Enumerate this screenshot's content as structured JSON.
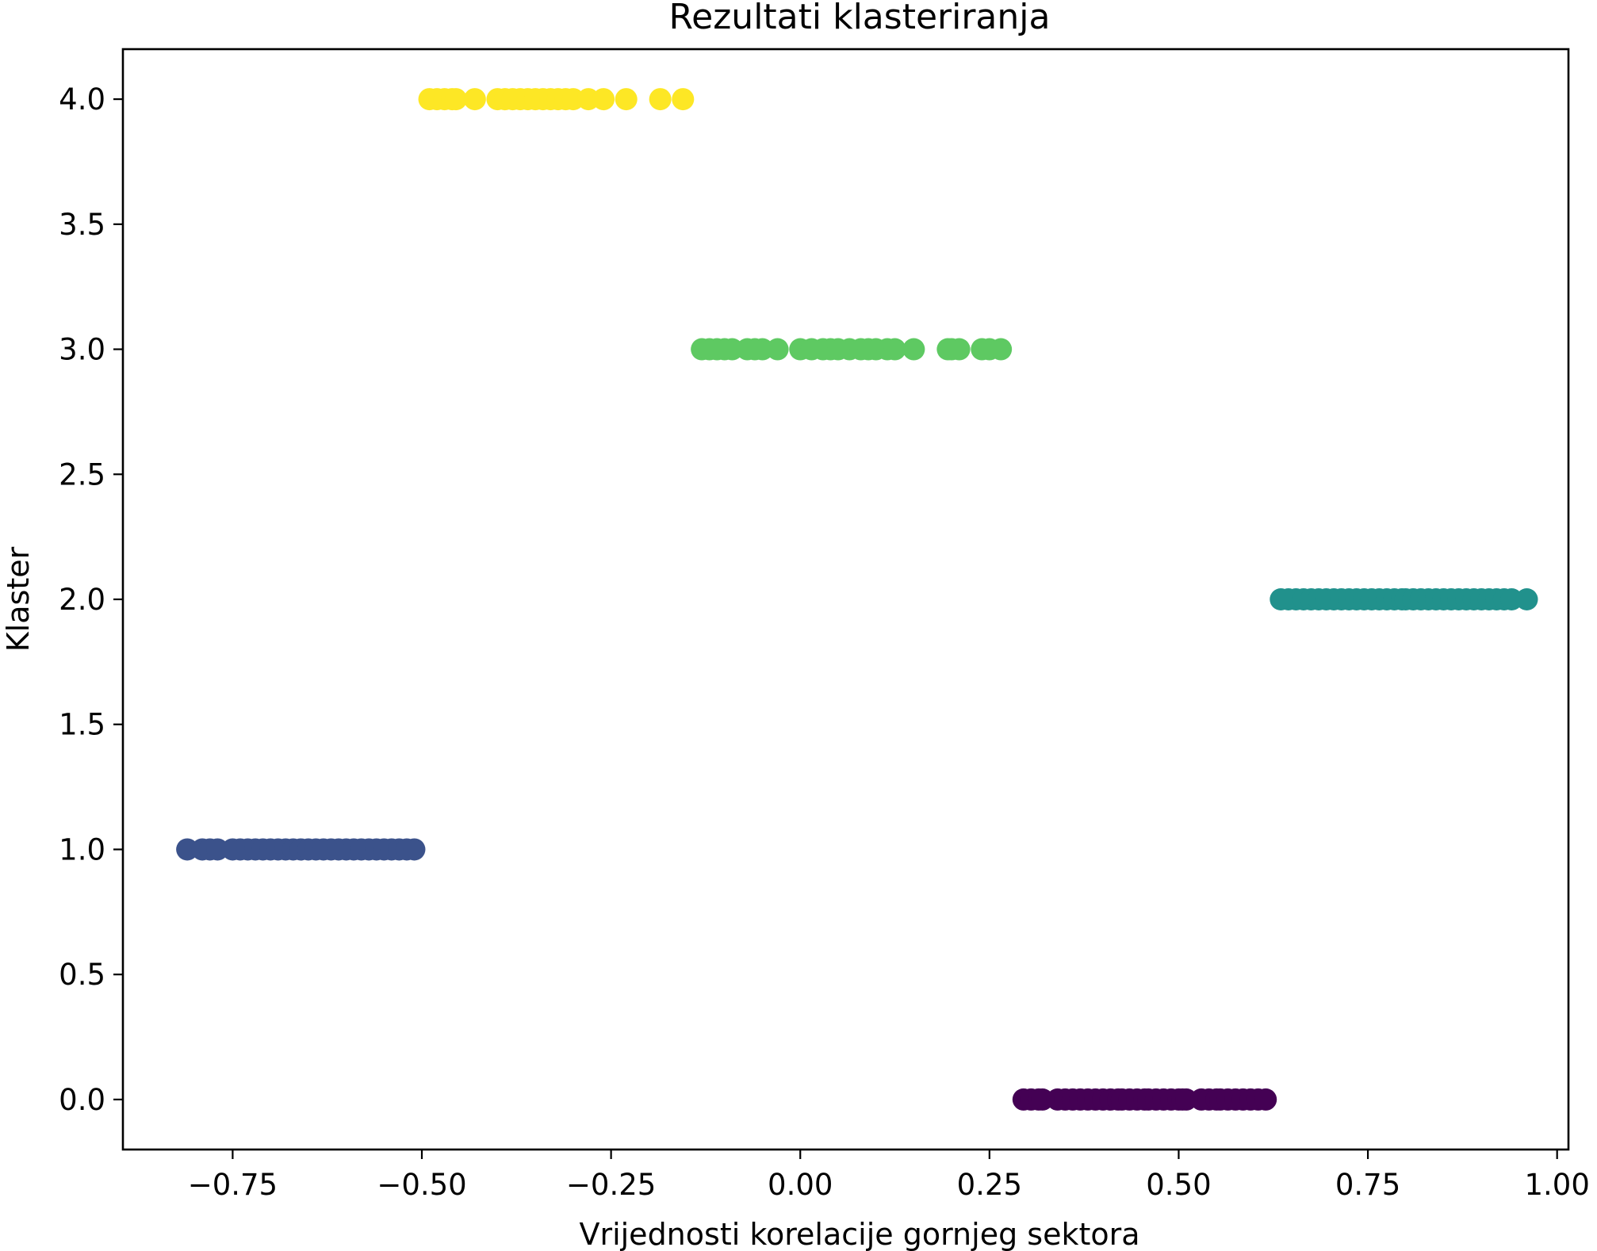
{
  "chart_data": {
    "type": "scatter",
    "title": "Rezultati klasteriranja",
    "xlabel": "Vrijednosti korelacije gornjeg sektora",
    "ylabel": "Klaster",
    "xlim": [
      -0.895,
      1.015
    ],
    "ylim": [
      -0.2,
      4.2
    ],
    "xticks": [
      -0.75,
      -0.5,
      -0.25,
      0.0,
      0.25,
      0.5,
      0.75,
      1.0
    ],
    "xtick_labels": [
      "−0.75",
      "−0.50",
      "−0.25",
      "0.00",
      "0.25",
      "0.50",
      "0.75",
      "1.00"
    ],
    "yticks": [
      0.0,
      0.5,
      1.0,
      1.5,
      2.0,
      2.5,
      3.0,
      3.5,
      4.0
    ],
    "ytick_labels": [
      "0.0",
      "0.5",
      "1.0",
      "1.5",
      "2.0",
      "2.5",
      "3.0",
      "3.5",
      "4.0"
    ],
    "grid": false,
    "legend": "none",
    "colors": {
      "cluster_0": "#440154",
      "cluster_1": "#3b528b",
      "cluster_2": "#21918c",
      "cluster_3": "#5ec962",
      "cluster_4": "#fde725"
    },
    "series": [
      {
        "cluster": 0,
        "y": 0,
        "x": [
          0.295,
          0.305,
          0.315,
          0.32,
          0.34,
          0.35,
          0.36,
          0.37,
          0.38,
          0.39,
          0.4,
          0.41,
          0.42,
          0.425,
          0.435,
          0.445,
          0.455,
          0.46,
          0.47,
          0.48,
          0.49,
          0.5,
          0.505,
          0.51,
          0.53,
          0.54,
          0.55,
          0.555,
          0.565,
          0.575,
          0.585,
          0.595,
          0.605,
          0.615
        ]
      },
      {
        "cluster": 1,
        "y": 1,
        "x": [
          -0.81,
          -0.79,
          -0.78,
          -0.77,
          -0.75,
          -0.74,
          -0.73,
          -0.72,
          -0.71,
          -0.7,
          -0.69,
          -0.68,
          -0.67,
          -0.66,
          -0.65,
          -0.64,
          -0.63,
          -0.62,
          -0.61,
          -0.6,
          -0.59,
          -0.58,
          -0.57,
          -0.56,
          -0.55,
          -0.54,
          -0.53,
          -0.52,
          -0.51
        ]
      },
      {
        "cluster": 2,
        "y": 2,
        "x": [
          0.635,
          0.645,
          0.655,
          0.665,
          0.675,
          0.685,
          0.695,
          0.705,
          0.715,
          0.725,
          0.735,
          0.745,
          0.755,
          0.765,
          0.775,
          0.785,
          0.795,
          0.8,
          0.81,
          0.82,
          0.83,
          0.84,
          0.85,
          0.86,
          0.87,
          0.88,
          0.89,
          0.9,
          0.91,
          0.92,
          0.93,
          0.94,
          0.96
        ]
      },
      {
        "cluster": 3,
        "y": 3,
        "x": [
          -0.13,
          -0.12,
          -0.11,
          -0.1,
          -0.09,
          -0.07,
          -0.06,
          -0.05,
          -0.03,
          0.0,
          0.015,
          0.03,
          0.04,
          0.05,
          0.065,
          0.08,
          0.09,
          0.1,
          0.115,
          0.125,
          0.15,
          0.195,
          0.2,
          0.21,
          0.24,
          0.25,
          0.265
        ]
      },
      {
        "cluster": 4,
        "y": 4,
        "x": [
          -0.49,
          -0.48,
          -0.47,
          -0.46,
          -0.455,
          -0.43,
          -0.4,
          -0.39,
          -0.38,
          -0.37,
          -0.36,
          -0.35,
          -0.34,
          -0.33,
          -0.32,
          -0.31,
          -0.3,
          -0.28,
          -0.26,
          -0.23,
          -0.185,
          -0.155
        ]
      }
    ]
  }
}
